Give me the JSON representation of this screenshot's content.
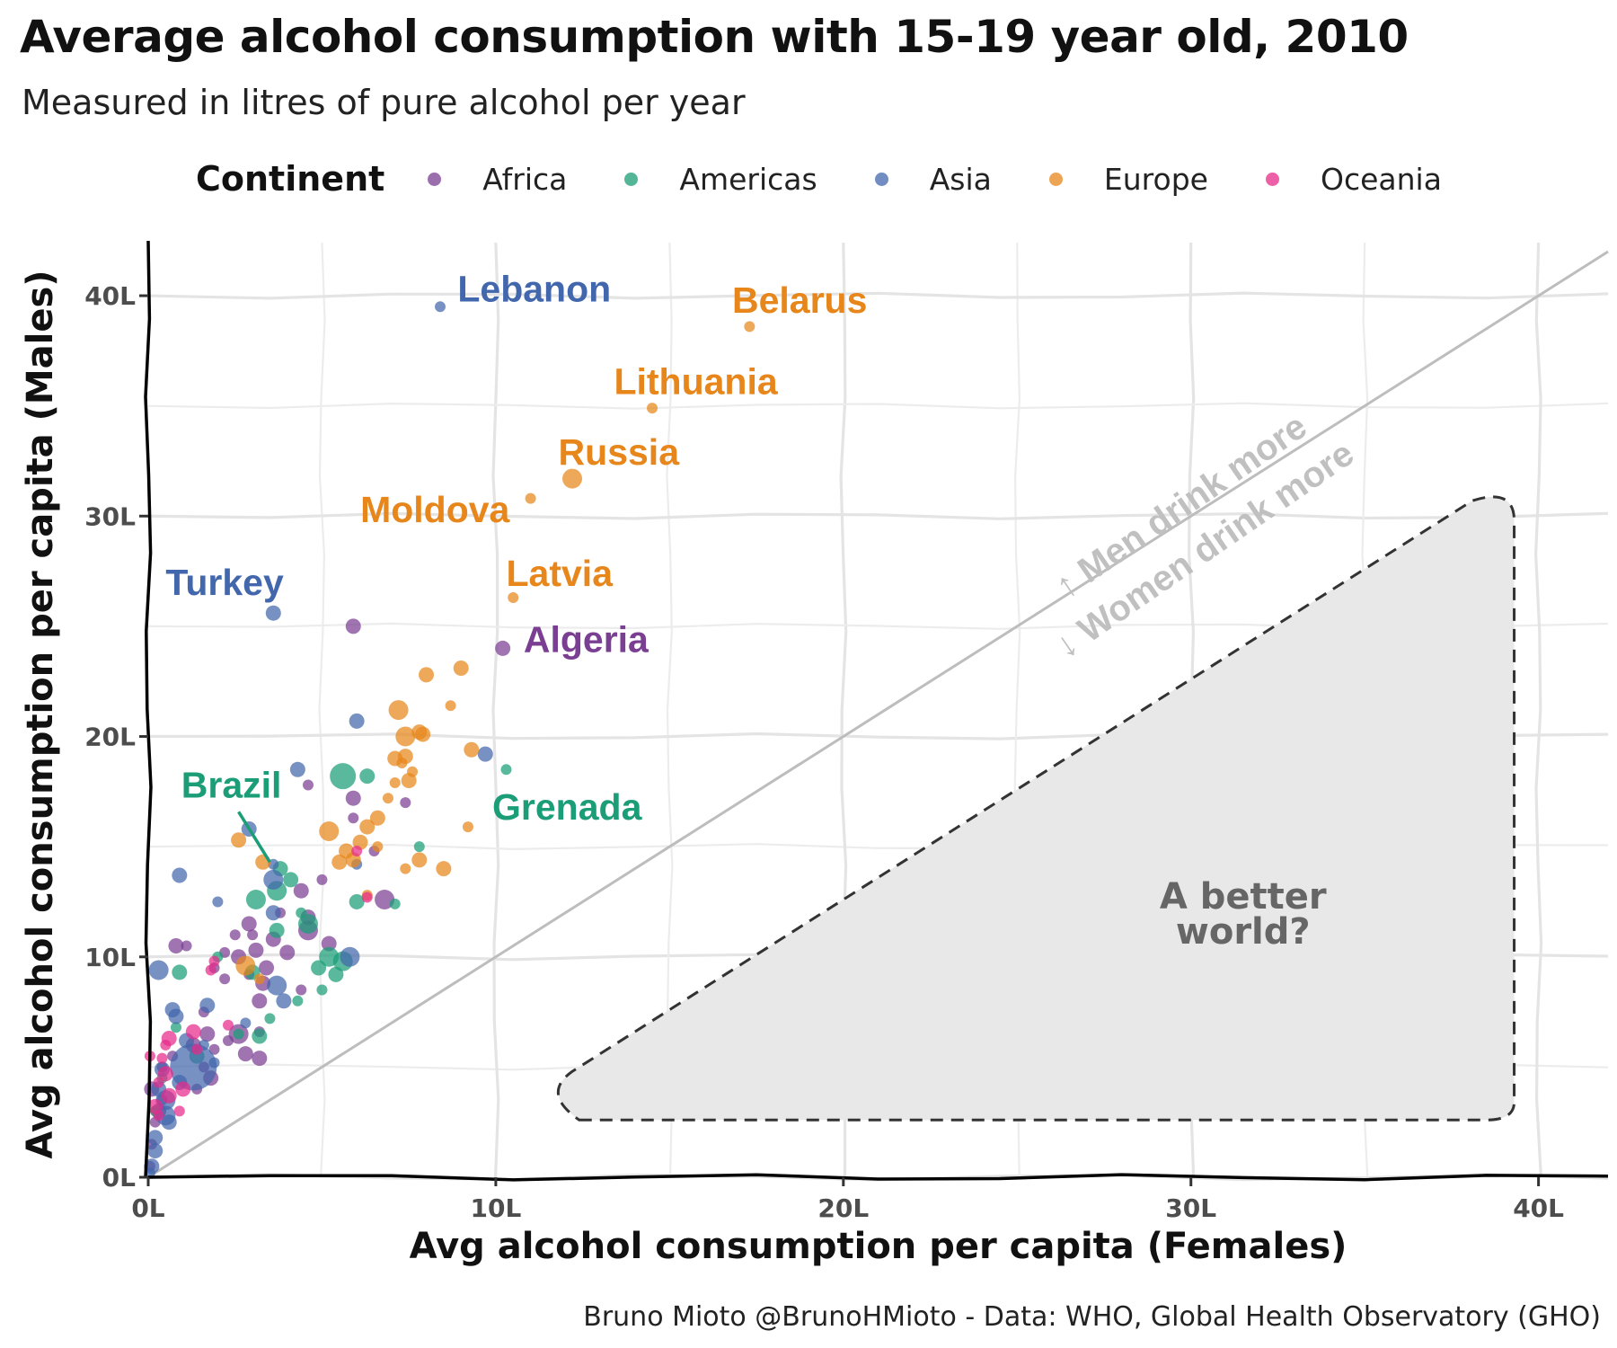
{
  "title": "Average alcohol consumption with 15-19 year old, 2010",
  "subtitle": "Measured in litres of pure alcohol per year",
  "caption": "Bruno Mioto @BrunoHMioto - Data: WHO, Global Health Observatory (GHO)",
  "legend": {
    "title": "Continent",
    "items": [
      {
        "label": "Africa",
        "color": "#7a3f93"
      },
      {
        "label": "Americas",
        "color": "#1b9e77"
      },
      {
        "label": "Asia",
        "color": "#4267ac"
      },
      {
        "label": "Europe",
        "color": "#e7861b"
      },
      {
        "label": "Oceania",
        "color": "#e7298a"
      }
    ]
  },
  "chart_data": {
    "type": "scatter",
    "xlabel": "Avg alcohol consumption per capita (Females)",
    "ylabel": "Avg alcohol consumption per capita (Males)",
    "xlim": [
      0,
      42
    ],
    "ylim": [
      0,
      42
    ],
    "x_ticks": [
      "0L",
      "10L",
      "20L",
      "30L",
      "40L"
    ],
    "y_ticks": [
      "0L",
      "10L",
      "20L",
      "30L",
      "40L"
    ],
    "grid": true,
    "legend_position": "top",
    "reference_line": "y = x",
    "annotations": {
      "men_more": "↑ Men drink more",
      "women_more": "↓ Women drink more",
      "better_world_line1": "A better",
      "better_world_line2": "world?"
    },
    "labels": [
      {
        "text": "Lebanon",
        "continent": "Asia"
      },
      {
        "text": "Belarus",
        "continent": "Europe"
      },
      {
        "text": "Lithuania",
        "continent": "Europe"
      },
      {
        "text": "Russia",
        "continent": "Europe"
      },
      {
        "text": "Moldova",
        "continent": "Europe"
      },
      {
        "text": "Turkey",
        "continent": "Asia"
      },
      {
        "text": "Latvia",
        "continent": "Europe"
      },
      {
        "text": "Algeria",
        "continent": "Africa"
      },
      {
        "text": "Brazil",
        "continent": "Americas"
      },
      {
        "text": "Grenada",
        "continent": "Americas"
      }
    ],
    "series": [
      {
        "name": "Africa",
        "points": [
          [
            5.9,
            25.0,
            1
          ],
          [
            10.2,
            24.0,
            1
          ],
          [
            4.6,
            17.8,
            0
          ],
          [
            5.9,
            17.2,
            1
          ],
          [
            7.4,
            17.0,
            0
          ],
          [
            5.9,
            16.3,
            0
          ],
          [
            6.5,
            14.8,
            0
          ],
          [
            5.0,
            13.5,
            0
          ],
          [
            4.4,
            13.0,
            1
          ],
          [
            6.8,
            12.6,
            2
          ],
          [
            3.8,
            12.0,
            0
          ],
          [
            4.6,
            11.8,
            1
          ],
          [
            2.9,
            11.5,
            1
          ],
          [
            4.6,
            11.2,
            2
          ],
          [
            3.0,
            11.0,
            0
          ],
          [
            2.5,
            11.0,
            0
          ],
          [
            3.6,
            10.8,
            1
          ],
          [
            5.2,
            10.6,
            1
          ],
          [
            0.8,
            10.5,
            1
          ],
          [
            1.1,
            10.5,
            0
          ],
          [
            2.2,
            10.2,
            0
          ],
          [
            3.1,
            10.3,
            1
          ],
          [
            4.0,
            10.2,
            1
          ],
          [
            2.6,
            10.0,
            1
          ],
          [
            3.4,
            9.5,
            1
          ],
          [
            1.9,
            9.5,
            0
          ],
          [
            2.9,
            9.2,
            0
          ],
          [
            2.2,
            9.0,
            0
          ],
          [
            3.3,
            8.8,
            1
          ],
          [
            4.4,
            8.5,
            0
          ],
          [
            3.2,
            8.0,
            1
          ],
          [
            1.6,
            7.5,
            0
          ],
          [
            2.6,
            6.5,
            2
          ],
          [
            3.2,
            6.6,
            0
          ],
          [
            1.7,
            6.5,
            1
          ],
          [
            2.3,
            6.2,
            0
          ],
          [
            1.3,
            6.0,
            1
          ],
          [
            1.9,
            5.8,
            0
          ],
          [
            0.7,
            5.5,
            0
          ],
          [
            2.8,
            5.6,
            1
          ],
          [
            3.2,
            5.4,
            1
          ],
          [
            1.6,
            5.0,
            0
          ],
          [
            1.8,
            4.5,
            1
          ],
          [
            1.4,
            4.0,
            0
          ],
          [
            0.4,
            3.5,
            0
          ],
          [
            0.3,
            3.0,
            1
          ],
          [
            0.2,
            2.5,
            0
          ],
          [
            0.1,
            1.5,
            0
          ],
          [
            0.05,
            0.5,
            0
          ],
          [
            0.1,
            4.0,
            1
          ],
          [
            0.4,
            5.0,
            0
          ]
        ]
      },
      {
        "name": "Americas",
        "points": [
          [
            10.3,
            18.5,
            0
          ],
          [
            5.6,
            18.2,
            3
          ],
          [
            6.3,
            18.2,
            1
          ],
          [
            7.8,
            15.0,
            0
          ],
          [
            3.8,
            14.0,
            1
          ],
          [
            3.7,
            13.0,
            2
          ],
          [
            4.1,
            13.5,
            1
          ],
          [
            6.0,
            12.5,
            1
          ],
          [
            7.1,
            12.4,
            0
          ],
          [
            3.1,
            12.6,
            2
          ],
          [
            4.4,
            12.0,
            0
          ],
          [
            4.6,
            11.5,
            2
          ],
          [
            3.7,
            11.2,
            1
          ],
          [
            2.0,
            10.0,
            0
          ],
          [
            5.2,
            10.0,
            2
          ],
          [
            5.6,
            9.8,
            2
          ],
          [
            0.9,
            9.3,
            1
          ],
          [
            4.9,
            9.5,
            1
          ],
          [
            5.4,
            9.2,
            1
          ],
          [
            3.0,
            9.3,
            1
          ],
          [
            4.3,
            8.0,
            0
          ],
          [
            5.0,
            8.5,
            0
          ],
          [
            3.5,
            7.2,
            0
          ],
          [
            0.8,
            6.8,
            0
          ],
          [
            3.2,
            6.4,
            1
          ],
          [
            2.6,
            6.5,
            0
          ],
          [
            1.4,
            5.5,
            1
          ],
          [
            0.4,
            4.5,
            0
          ],
          [
            0.2,
            3.0,
            0
          ]
        ]
      },
      {
        "name": "Asia",
        "points": [
          [
            8.4,
            39.5,
            0
          ],
          [
            3.6,
            25.6,
            1
          ],
          [
            6.0,
            20.7,
            1
          ],
          [
            9.7,
            19.2,
            1
          ],
          [
            4.3,
            18.5,
            1
          ],
          [
            6.0,
            14.2,
            0
          ],
          [
            2.9,
            15.8,
            1
          ],
          [
            3.6,
            14.2,
            0
          ],
          [
            0.9,
            13.7,
            1
          ],
          [
            3.6,
            13.5,
            2
          ],
          [
            2.0,
            12.5,
            0
          ],
          [
            3.6,
            12.0,
            1
          ],
          [
            5.8,
            10.0,
            2
          ],
          [
            0.3,
            9.4,
            2
          ],
          [
            3.7,
            8.7,
            2
          ],
          [
            1.7,
            7.8,
            1
          ],
          [
            3.9,
            8.0,
            1
          ],
          [
            0.7,
            7.6,
            1
          ],
          [
            0.8,
            7.3,
            1
          ],
          [
            2.8,
            7.0,
            0
          ],
          [
            1.1,
            6.2,
            1
          ],
          [
            1.6,
            6.0,
            0
          ],
          [
            1.9,
            5.2,
            0
          ],
          [
            1.3,
            5.0,
            4
          ],
          [
            0.4,
            4.9,
            1
          ],
          [
            0.9,
            4.3,
            1
          ],
          [
            0.5,
            3.5,
            2
          ],
          [
            0.5,
            2.8,
            2
          ],
          [
            0.2,
            1.8,
            1
          ],
          [
            0.2,
            1.2,
            1
          ],
          [
            0.1,
            0.5,
            1
          ],
          [
            0.05,
            0.2,
            0
          ],
          [
            0.6,
            2.5,
            1
          ],
          [
            0.3,
            4.0,
            1
          ]
        ]
      },
      {
        "name": "Europe",
        "points": [
          [
            17.3,
            38.6,
            0
          ],
          [
            14.5,
            34.9,
            0
          ],
          [
            12.2,
            31.7,
            2
          ],
          [
            11.0,
            30.8,
            0
          ],
          [
            10.5,
            26.3,
            0
          ],
          [
            8.0,
            22.8,
            1
          ],
          [
            9.0,
            23.1,
            1
          ],
          [
            8.7,
            21.4,
            0
          ],
          [
            7.2,
            21.2,
            2
          ],
          [
            7.9,
            20.1,
            1
          ],
          [
            7.8,
            20.2,
            1
          ],
          [
            7.4,
            20.0,
            2
          ],
          [
            9.3,
            19.4,
            1
          ],
          [
            7.1,
            19.0,
            1
          ],
          [
            7.4,
            19.1,
            1
          ],
          [
            7.3,
            18.8,
            0
          ],
          [
            7.6,
            18.4,
            0
          ],
          [
            7.5,
            18.0,
            1
          ],
          [
            7.1,
            17.9,
            0
          ],
          [
            6.9,
            17.2,
            0
          ],
          [
            9.2,
            15.9,
            0
          ],
          [
            6.6,
            16.3,
            1
          ],
          [
            6.3,
            15.9,
            1
          ],
          [
            5.2,
            15.7,
            2
          ],
          [
            6.1,
            15.2,
            1
          ],
          [
            6.6,
            15.0,
            0
          ],
          [
            5.7,
            14.8,
            1
          ],
          [
            5.9,
            14.4,
            1
          ],
          [
            5.5,
            14.3,
            1
          ],
          [
            7.8,
            14.4,
            1
          ],
          [
            8.5,
            14.0,
            1
          ],
          [
            7.4,
            14.0,
            0
          ],
          [
            2.6,
            15.3,
            1
          ],
          [
            3.3,
            14.3,
            1
          ],
          [
            6.3,
            12.8,
            0
          ],
          [
            2.8,
            9.6,
            2
          ],
          [
            3.2,
            9.0,
            0
          ]
        ]
      },
      {
        "name": "Oceania",
        "points": [
          [
            6.3,
            12.7,
            0
          ],
          [
            6.0,
            14.8,
            0
          ],
          [
            1.9,
            9.8,
            0
          ],
          [
            1.8,
            9.4,
            0
          ],
          [
            2.3,
            6.9,
            0
          ],
          [
            1.3,
            6.6,
            1
          ],
          [
            0.6,
            6.3,
            1
          ],
          [
            0.5,
            6.0,
            0
          ],
          [
            1.4,
            5.8,
            0
          ],
          [
            0.4,
            5.4,
            0
          ],
          [
            0.5,
            4.7,
            1
          ],
          [
            1.0,
            4.0,
            1
          ],
          [
            0.3,
            4.3,
            0
          ],
          [
            0.6,
            3.7,
            1
          ],
          [
            0.2,
            3.2,
            1
          ],
          [
            0.9,
            3.0,
            0
          ],
          [
            0.3,
            2.8,
            0
          ],
          [
            0.05,
            5.5,
            0
          ]
        ]
      }
    ]
  }
}
